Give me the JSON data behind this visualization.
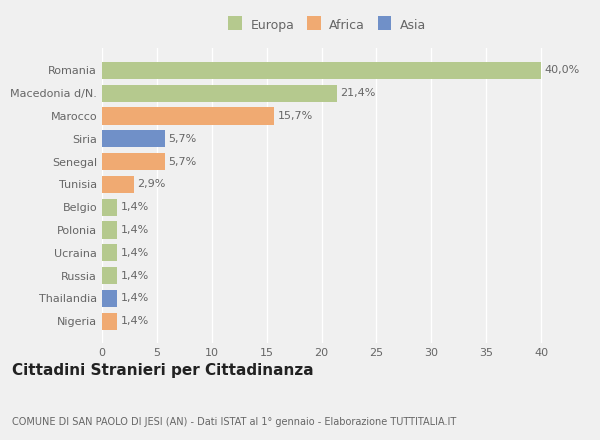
{
  "categories": [
    "Romania",
    "Macedonia d/N.",
    "Marocco",
    "Siria",
    "Senegal",
    "Tunisia",
    "Belgio",
    "Polonia",
    "Ucraina",
    "Russia",
    "Thailandia",
    "Nigeria"
  ],
  "values": [
    40.0,
    21.4,
    15.7,
    5.7,
    5.7,
    2.9,
    1.4,
    1.4,
    1.4,
    1.4,
    1.4,
    1.4
  ],
  "labels": [
    "40,0%",
    "21,4%",
    "15,7%",
    "5,7%",
    "5,7%",
    "2,9%",
    "1,4%",
    "1,4%",
    "1,4%",
    "1,4%",
    "1,4%",
    "1,4%"
  ],
  "colors": [
    "#b5c98e",
    "#b5c98e",
    "#f0aa72",
    "#7090c8",
    "#f0aa72",
    "#f0aa72",
    "#b5c98e",
    "#b5c98e",
    "#b5c98e",
    "#b5c98e",
    "#7090c8",
    "#f0aa72"
  ],
  "legend_labels": [
    "Europa",
    "Africa",
    "Asia"
  ],
  "legend_colors": [
    "#b5c98e",
    "#f0aa72",
    "#7090c8"
  ],
  "title": "Cittadini Stranieri per Cittadinanza",
  "subtitle": "COMUNE DI SAN PAOLO DI JESI (AN) - Dati ISTAT al 1° gennaio - Elaborazione TUTTITALIA.IT",
  "xlim": [
    0,
    41
  ],
  "xticks": [
    0,
    5,
    10,
    15,
    20,
    25,
    30,
    35,
    40
  ],
  "background_color": "#f0f0f0",
  "plot_bg_color": "#f0f0f0",
  "grid_color": "#ffffff",
  "bar_height": 0.75,
  "label_fontsize": 8,
  "tick_fontsize": 8,
  "ytick_fontsize": 8,
  "title_fontsize": 11,
  "subtitle_fontsize": 7,
  "legend_fontsize": 9
}
